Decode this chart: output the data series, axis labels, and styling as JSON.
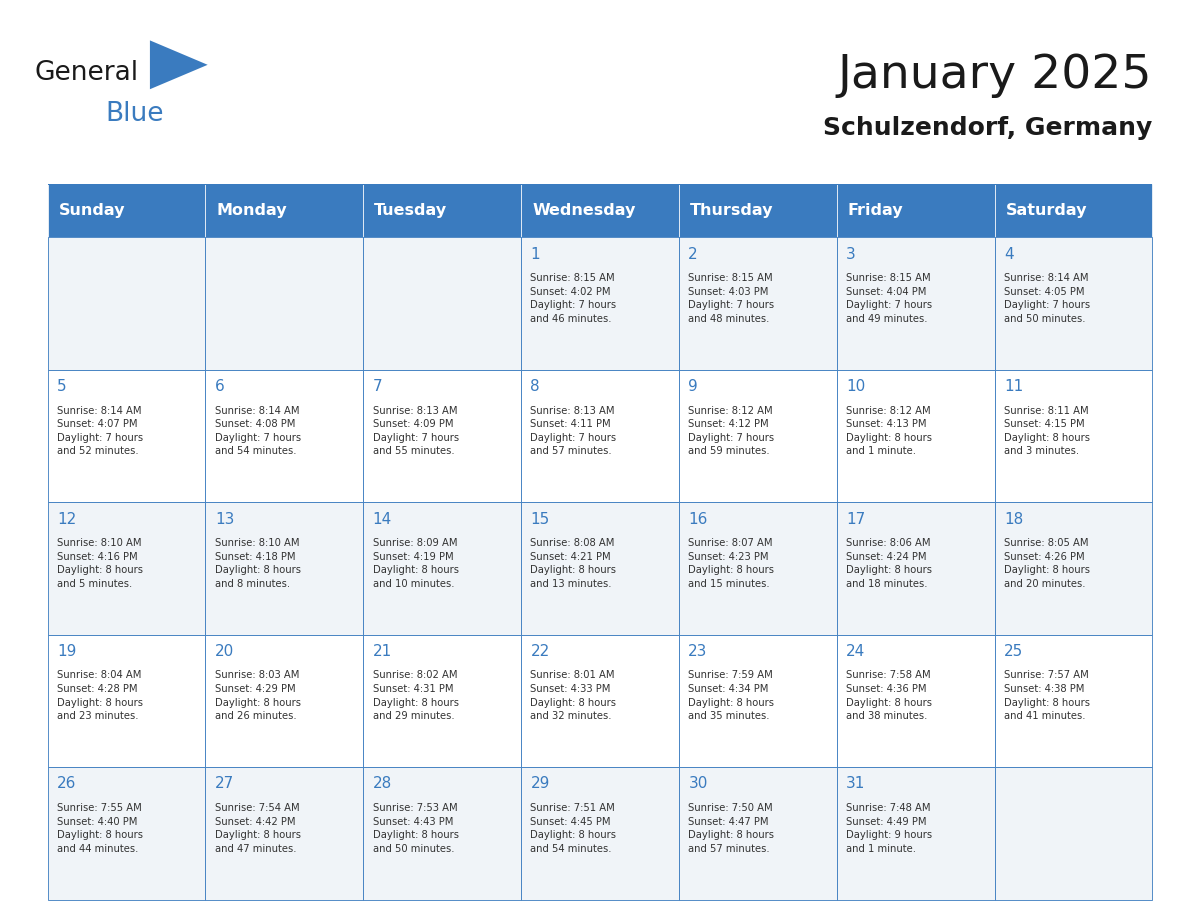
{
  "title": "January 2025",
  "subtitle": "Schulzendorf, Germany",
  "header_color": "#3a7bbf",
  "header_text_color": "#ffffff",
  "cell_bg_even": "#f0f4f8",
  "cell_bg_odd": "#ffffff",
  "day_number_color": "#3a7bbf",
  "text_color": "#333333",
  "days_of_week": [
    "Sunday",
    "Monday",
    "Tuesday",
    "Wednesday",
    "Thursday",
    "Friday",
    "Saturday"
  ],
  "weeks": [
    [
      {
        "day": "",
        "info": ""
      },
      {
        "day": "",
        "info": ""
      },
      {
        "day": "",
        "info": ""
      },
      {
        "day": "1",
        "info": "Sunrise: 8:15 AM\nSunset: 4:02 PM\nDaylight: 7 hours\nand 46 minutes."
      },
      {
        "day": "2",
        "info": "Sunrise: 8:15 AM\nSunset: 4:03 PM\nDaylight: 7 hours\nand 48 minutes."
      },
      {
        "day": "3",
        "info": "Sunrise: 8:15 AM\nSunset: 4:04 PM\nDaylight: 7 hours\nand 49 minutes."
      },
      {
        "day": "4",
        "info": "Sunrise: 8:14 AM\nSunset: 4:05 PM\nDaylight: 7 hours\nand 50 minutes."
      }
    ],
    [
      {
        "day": "5",
        "info": "Sunrise: 8:14 AM\nSunset: 4:07 PM\nDaylight: 7 hours\nand 52 minutes."
      },
      {
        "day": "6",
        "info": "Sunrise: 8:14 AM\nSunset: 4:08 PM\nDaylight: 7 hours\nand 54 minutes."
      },
      {
        "day": "7",
        "info": "Sunrise: 8:13 AM\nSunset: 4:09 PM\nDaylight: 7 hours\nand 55 minutes."
      },
      {
        "day": "8",
        "info": "Sunrise: 8:13 AM\nSunset: 4:11 PM\nDaylight: 7 hours\nand 57 minutes."
      },
      {
        "day": "9",
        "info": "Sunrise: 8:12 AM\nSunset: 4:12 PM\nDaylight: 7 hours\nand 59 minutes."
      },
      {
        "day": "10",
        "info": "Sunrise: 8:12 AM\nSunset: 4:13 PM\nDaylight: 8 hours\nand 1 minute."
      },
      {
        "day": "11",
        "info": "Sunrise: 8:11 AM\nSunset: 4:15 PM\nDaylight: 8 hours\nand 3 minutes."
      }
    ],
    [
      {
        "day": "12",
        "info": "Sunrise: 8:10 AM\nSunset: 4:16 PM\nDaylight: 8 hours\nand 5 minutes."
      },
      {
        "day": "13",
        "info": "Sunrise: 8:10 AM\nSunset: 4:18 PM\nDaylight: 8 hours\nand 8 minutes."
      },
      {
        "day": "14",
        "info": "Sunrise: 8:09 AM\nSunset: 4:19 PM\nDaylight: 8 hours\nand 10 minutes."
      },
      {
        "day": "15",
        "info": "Sunrise: 8:08 AM\nSunset: 4:21 PM\nDaylight: 8 hours\nand 13 minutes."
      },
      {
        "day": "16",
        "info": "Sunrise: 8:07 AM\nSunset: 4:23 PM\nDaylight: 8 hours\nand 15 minutes."
      },
      {
        "day": "17",
        "info": "Sunrise: 8:06 AM\nSunset: 4:24 PM\nDaylight: 8 hours\nand 18 minutes."
      },
      {
        "day": "18",
        "info": "Sunrise: 8:05 AM\nSunset: 4:26 PM\nDaylight: 8 hours\nand 20 minutes."
      }
    ],
    [
      {
        "day": "19",
        "info": "Sunrise: 8:04 AM\nSunset: 4:28 PM\nDaylight: 8 hours\nand 23 minutes."
      },
      {
        "day": "20",
        "info": "Sunrise: 8:03 AM\nSunset: 4:29 PM\nDaylight: 8 hours\nand 26 minutes."
      },
      {
        "day": "21",
        "info": "Sunrise: 8:02 AM\nSunset: 4:31 PM\nDaylight: 8 hours\nand 29 minutes."
      },
      {
        "day": "22",
        "info": "Sunrise: 8:01 AM\nSunset: 4:33 PM\nDaylight: 8 hours\nand 32 minutes."
      },
      {
        "day": "23",
        "info": "Sunrise: 7:59 AM\nSunset: 4:34 PM\nDaylight: 8 hours\nand 35 minutes."
      },
      {
        "day": "24",
        "info": "Sunrise: 7:58 AM\nSunset: 4:36 PM\nDaylight: 8 hours\nand 38 minutes."
      },
      {
        "day": "25",
        "info": "Sunrise: 7:57 AM\nSunset: 4:38 PM\nDaylight: 8 hours\nand 41 minutes."
      }
    ],
    [
      {
        "day": "26",
        "info": "Sunrise: 7:55 AM\nSunset: 4:40 PM\nDaylight: 8 hours\nand 44 minutes."
      },
      {
        "day": "27",
        "info": "Sunrise: 7:54 AM\nSunset: 4:42 PM\nDaylight: 8 hours\nand 47 minutes."
      },
      {
        "day": "28",
        "info": "Sunrise: 7:53 AM\nSunset: 4:43 PM\nDaylight: 8 hours\nand 50 minutes."
      },
      {
        "day": "29",
        "info": "Sunrise: 7:51 AM\nSunset: 4:45 PM\nDaylight: 8 hours\nand 54 minutes."
      },
      {
        "day": "30",
        "info": "Sunrise: 7:50 AM\nSunset: 4:47 PM\nDaylight: 8 hours\nand 57 minutes."
      },
      {
        "day": "31",
        "info": "Sunrise: 7:48 AM\nSunset: 4:49 PM\nDaylight: 9 hours\nand 1 minute."
      },
      {
        "day": "",
        "info": ""
      }
    ]
  ],
  "logo_text_general": "General",
  "logo_text_blue": "Blue",
  "logo_color_general": "#1a1a1a",
  "logo_color_blue": "#3a7bbf",
  "logo_triangle_color": "#3a7bbf"
}
